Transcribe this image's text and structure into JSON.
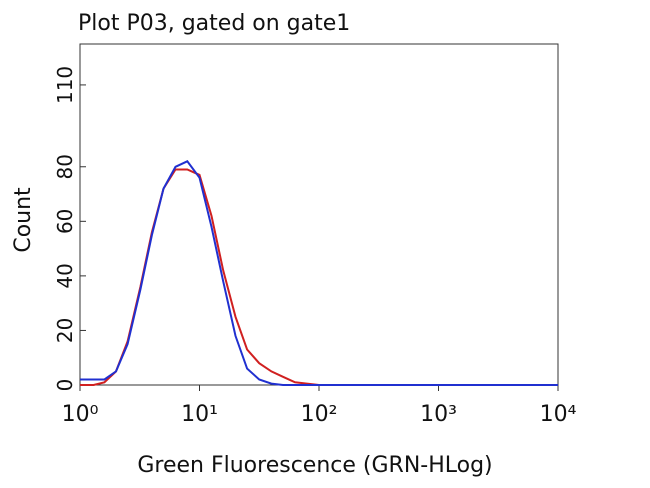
{
  "chart_data": {
    "type": "line",
    "title": "Plot P03, gated on gate1",
    "x_label": "Green Fluorescence (GRN-HLog)",
    "y_label": "Count",
    "x_scale": "log",
    "x": [
      1,
      1.3,
      1.6,
      2,
      2.5,
      3.2,
      4,
      5,
      6.3,
      7.9,
      10,
      12.6,
      15.8,
      20,
      25,
      31.6,
      40,
      50,
      63,
      79,
      100,
      1000,
      10000
    ],
    "series": [
      {
        "color": "#d02020",
        "values": [
          0,
          0,
          1,
          5,
          16,
          36,
          56,
          72,
          79,
          79,
          77,
          62,
          42,
          25,
          13,
          8,
          5,
          3,
          1,
          0.5,
          0,
          0,
          0
        ]
      },
      {
        "color": "#2030d0",
        "values": [
          2,
          2,
          2,
          5,
          15,
          35,
          55,
          72,
          80,
          82,
          76,
          58,
          38,
          18,
          6,
          2,
          0.5,
          0,
          0,
          0,
          0,
          0,
          0
        ]
      }
    ],
    "xlim": [
      1,
      10000
    ],
    "xticks": [
      {
        "value": 1,
        "label": "10⁰"
      },
      {
        "value": 10,
        "label": "10¹"
      },
      {
        "value": 100,
        "label": "10²"
      },
      {
        "value": 1000,
        "label": "10³"
      },
      {
        "value": 10000,
        "label": "10⁴"
      }
    ],
    "ylim": [
      0,
      125
    ],
    "yticks": [
      0,
      20,
      40,
      60,
      80,
      110
    ]
  }
}
